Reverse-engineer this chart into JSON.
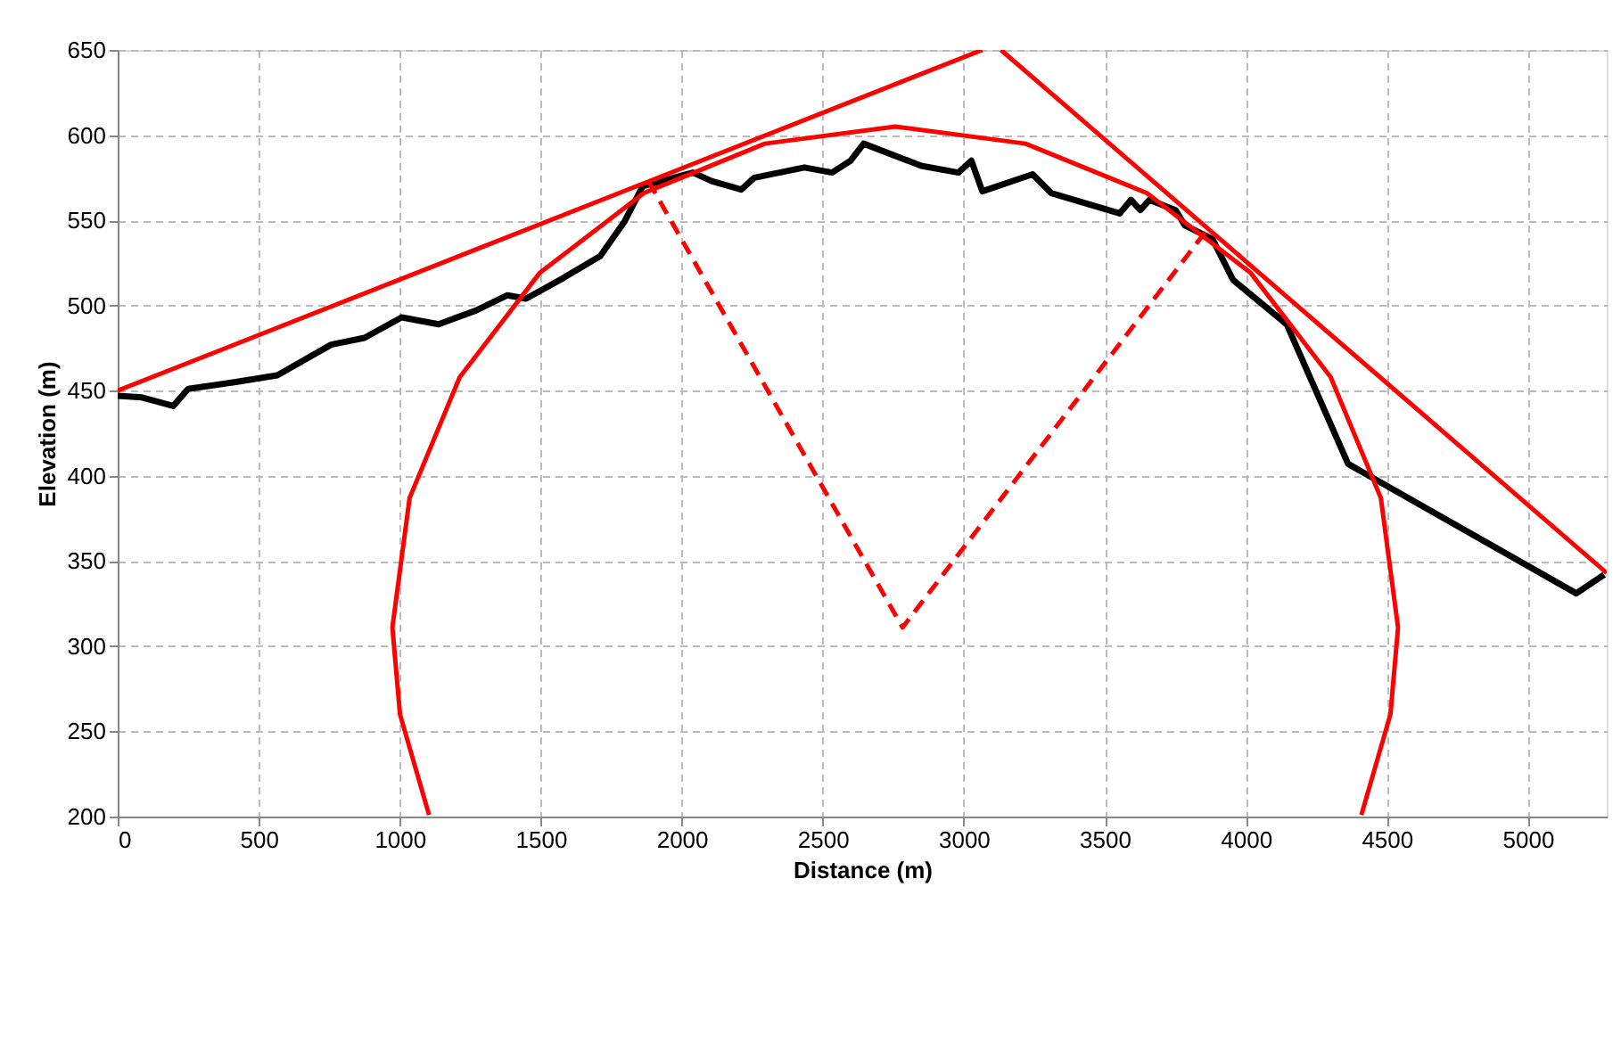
{
  "chart_data": {
    "type": "line",
    "xlabel": "Distance (m)",
    "ylabel": "Elevation (m)",
    "xlim": [
      0,
      5280
    ],
    "xticks": [
      0,
      500,
      1000,
      1500,
      2000,
      2500,
      3000,
      3500,
      4000,
      4500,
      5000
    ],
    "ylim": [
      200,
      650
    ],
    "yticks": [
      200,
      250,
      300,
      350,
      400,
      450,
      500,
      550,
      600,
      650
    ],
    "grid": true,
    "series": [
      {
        "color": "#000000",
        "line_style": "solid",
        "x": [
          0,
          86,
          197,
          250,
          414,
          566,
          757,
          875,
          1007,
          1138,
          1270,
          1382,
          1448,
          1579,
          1711,
          1796,
          1862,
          2040,
          2106,
          2211,
          2257,
          2435,
          2533,
          2599,
          2645,
          2849,
          2981,
          3027,
          3066,
          3244,
          3310,
          3553,
          3593,
          3626,
          3659,
          3751,
          3784,
          3882,
          3955,
          4145,
          4363,
          5172,
          5271
        ],
        "values": [
          447,
          446,
          441,
          451,
          455,
          459,
          477,
          481,
          493,
          489,
          497,
          506,
          504,
          516,
          529,
          549,
          570,
          578,
          573,
          568,
          575,
          581,
          578,
          585,
          595,
          582,
          578,
          585,
          567,
          577,
          566,
          554,
          562,
          556,
          562,
          556,
          547,
          539,
          515,
          489,
          407,
          331,
          342
        ]
      },
      {
        "color": "#ff0000",
        "line_style": "solid",
        "x": [
          0,
          3066
        ],
        "values": [
          450,
          650
        ]
      },
      {
        "color": "#ff0000",
        "line_style": "solid",
        "x": [
          3132,
          5280
        ],
        "values": [
          650,
          343
        ]
      },
      {
        "color": "#ff0000",
        "line_style": "dashed",
        "x": [
          1882,
          2783,
          3856
        ],
        "values": [
          573,
          311,
          543
        ]
      },
      {
        "color": "#ff0000",
        "line_style": "solid",
        "x": [
          4410,
          4513,
          4540,
          4479,
          4301,
          4018,
          3649,
          3219,
          2757,
          2295,
          1866,
          1496,
          1213,
          1035,
          974,
          1001,
          1104
        ],
        "values": [
          201,
          260,
          311,
          387,
          458,
          519,
          566,
          595,
          605,
          595,
          566,
          519,
          458,
          387,
          311,
          260,
          201
        ]
      }
    ]
  }
}
